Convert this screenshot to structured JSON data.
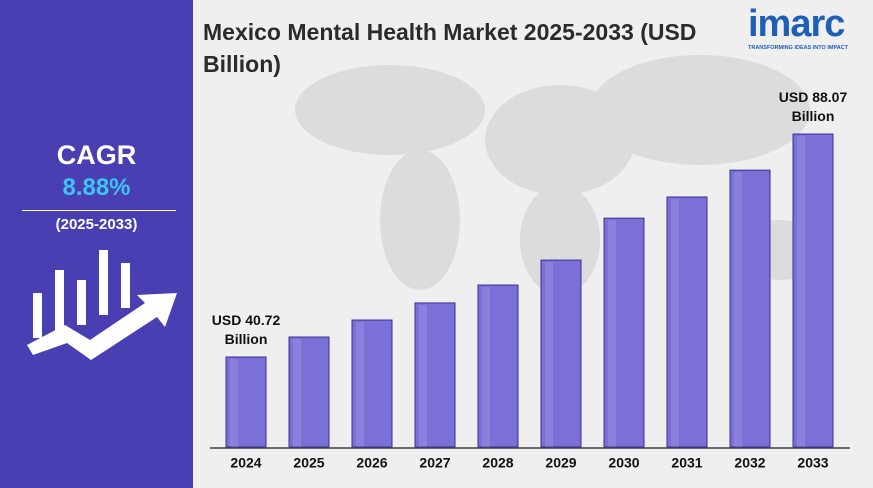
{
  "chart_data": {
    "type": "bar",
    "title": "Mexico Mental Health Market 2025-2033 (USD Billion)",
    "categories": [
      "2024",
      "2025",
      "2026",
      "2027",
      "2028",
      "2029",
      "2030",
      "2031",
      "2032",
      "2033"
    ],
    "values": [
      40.72,
      44.96,
      48.57,
      52.2,
      56.0,
      61.3,
      70.2,
      74.7,
      80.4,
      88.07
    ],
    "value_labels": [
      "USD 40.72 Billion",
      null,
      null,
      null,
      null,
      null,
      null,
      null,
      null,
      "USD 88.07 Billion"
    ],
    "color": "#7b6fd8",
    "ylim": [
      21.6,
      95.3
    ]
  },
  "sidebar": {
    "label": "CAGR",
    "value": "8.88%",
    "period": "(2025-2033)"
  },
  "logo": {
    "name": "imarc",
    "tagline": "TRANSFORMING IDEAS INTO IMPACT"
  }
}
